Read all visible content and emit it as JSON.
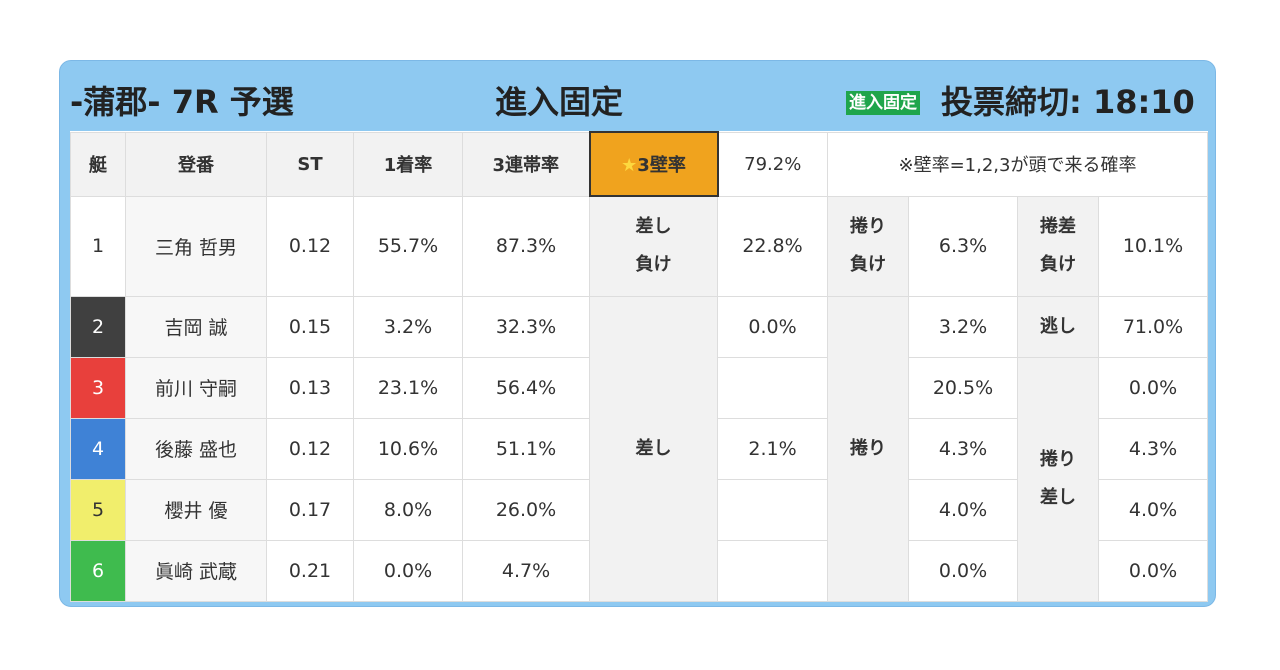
{
  "header": {
    "race_title": "-蒲郡- 7R 予選",
    "center_title": "進入固定",
    "badge": "進入固定",
    "deadline": "投票締切: 18:10"
  },
  "columns": {
    "boat": "艇",
    "reg": "登番",
    "st": "ST",
    "win1": "1着率",
    "top3": "3連帯率",
    "wall_label": "3壁率",
    "wall_value": "79.2%",
    "wall_note": "※壁率=1,2,3が頭で来る確率"
  },
  "rows": [
    {
      "boat": "1",
      "name": "三角 哲男",
      "st": "0.12",
      "win1": "55.7%",
      "top3": "87.3%"
    },
    {
      "boat": "2",
      "name": "吉岡 誠",
      "st": "0.15",
      "win1": "3.2%",
      "top3": "32.3%"
    },
    {
      "boat": "3",
      "name": "前川 守嗣",
      "st": "0.13",
      "win1": "23.1%",
      "top3": "56.4%"
    },
    {
      "boat": "4",
      "name": "後藤 盛也",
      "st": "0.12",
      "win1": "10.6%",
      "top3": "51.1%"
    },
    {
      "boat": "5",
      "name": "櫻井 優",
      "st": "0.17",
      "win1": "8.0%",
      "top3": "26.0%"
    },
    {
      "boat": "6",
      "name": "眞崎 武蔵",
      "st": "0.21",
      "win1": "0.0%",
      "top3": "4.7%"
    }
  ],
  "kimarite": {
    "sashi_make_l1": "差し",
    "sashi_make_l2": "負け",
    "sashi_make_v": "22.8%",
    "makuri_make_l1": "捲り",
    "makuri_make_l2": "負け",
    "makuri_make_v": "6.3%",
    "makurisashi_make_l1": "捲差",
    "makurisashi_make_l2": "負け",
    "makurisashi_make_v": "10.1%",
    "sashi": "差し",
    "makuri": "捲り",
    "nige": "逃し",
    "makurisashi_l1": "捲り",
    "makurisashi_l2": "差し",
    "b2_sashi": "0.0%",
    "b4_sashi": "2.1%",
    "b2_makuri": "3.2%",
    "b3_makuri": "20.5%",
    "b4_makuri": "4.3%",
    "b5_makuri": "4.0%",
    "b6_makuri": "0.0%",
    "b2_nige": "71.0%",
    "b3_ms": "0.0%",
    "b4_ms": "4.3%",
    "b5_ms": "4.0%",
    "b6_ms": "0.0%"
  },
  "colors": {
    "card_bg": "#8ec9f1",
    "wall_bg": "#f0a31e",
    "badge_bg": "#1fa54b",
    "boat_1": "#ffffff",
    "boat_2": "#404040",
    "boat_3": "#e8403c",
    "boat_4": "#3f82d6",
    "boat_5": "#f1ee6c",
    "boat_6": "#3fbb4e"
  }
}
